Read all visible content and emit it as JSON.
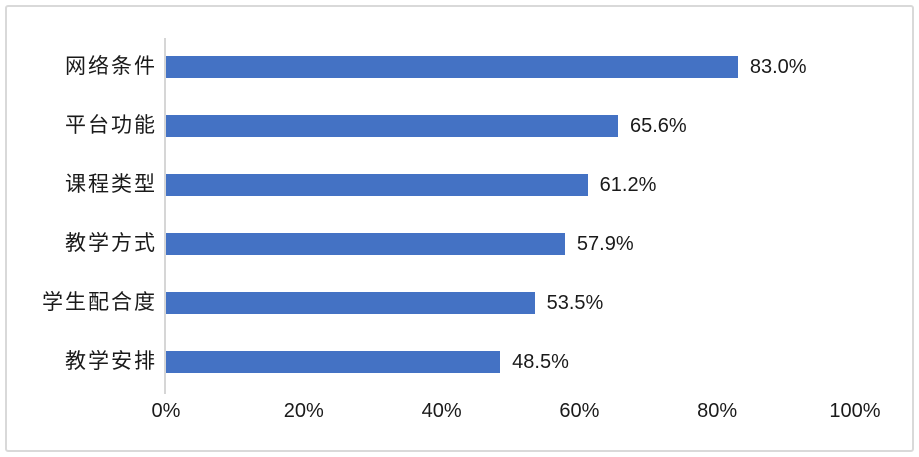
{
  "chart_data": {
    "type": "bar",
    "orientation": "horizontal",
    "title": "",
    "categories": [
      "网络条件",
      "平台功能",
      "课程类型",
      "教学方式",
      "学生配合度",
      "教学安排"
    ],
    "values": [
      83.0,
      65.6,
      61.2,
      57.9,
      53.5,
      48.5
    ],
    "data_labels": [
      "83.0%",
      "65.6%",
      "61.2%",
      "57.9%",
      "53.5%",
      "48.5%"
    ],
    "x_ticks": [
      {
        "value": 0,
        "label": "0%"
      },
      {
        "value": 20,
        "label": "20%"
      },
      {
        "value": 40,
        "label": "40%"
      },
      {
        "value": 60,
        "label": "60%"
      },
      {
        "value": 80,
        "label": "80%"
      },
      {
        "value": 100,
        "label": "100%"
      }
    ],
    "xlim": [
      0,
      100
    ],
    "xlabel": "",
    "ylabel": "",
    "grid": false,
    "legend": false,
    "bar_color": "#4472C4",
    "axis_line_color": "#D6D6D6",
    "border_color": "#D9D9D9",
    "text_color": "#1A1A1A"
  }
}
